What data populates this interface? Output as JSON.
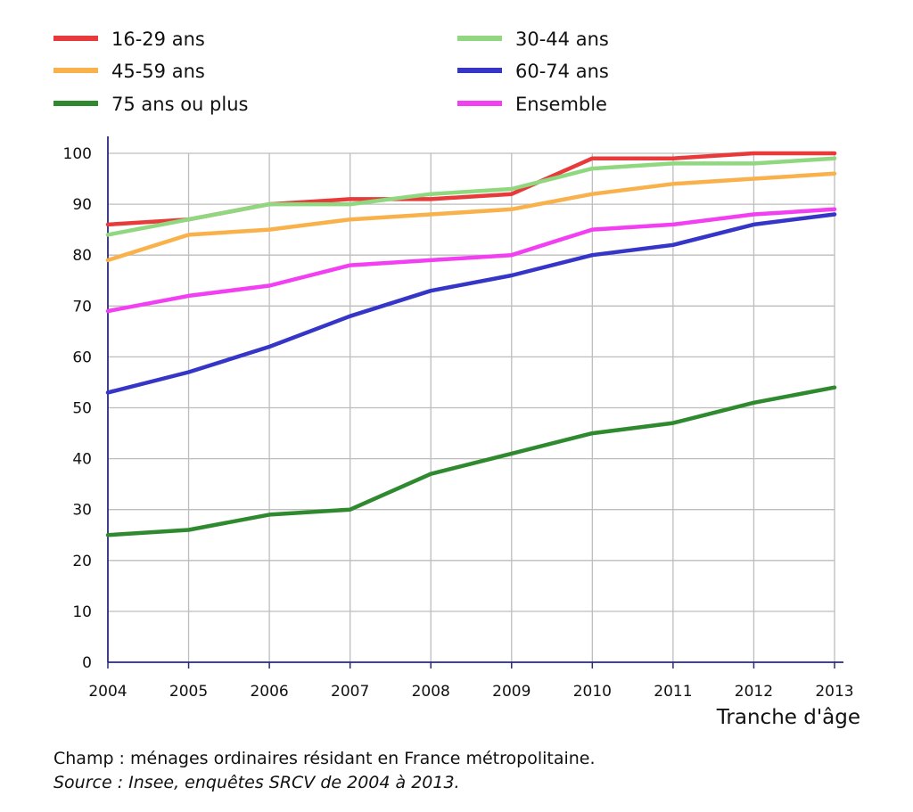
{
  "chart_data": {
    "type": "line",
    "xlabel": "Tranche d'âge",
    "ylabel": "",
    "ylim": [
      0,
      100
    ],
    "yticks": [
      0,
      10,
      20,
      30,
      40,
      50,
      60,
      70,
      80,
      90,
      100
    ],
    "categories": [
      "2004",
      "2005",
      "2006",
      "2007",
      "2008",
      "2009",
      "2010",
      "2011",
      "2012",
      "2013"
    ],
    "grid": true,
    "legend_placement": "top",
    "series": [
      {
        "name": "16-29 ans",
        "color": "#e83a3a",
        "values": [
          86,
          87,
          90,
          91,
          91,
          92,
          99,
          99,
          100,
          100
        ]
      },
      {
        "name": "30-44 ans",
        "color": "#90d880",
        "values": [
          84,
          87,
          90,
          90,
          92,
          93,
          97,
          98,
          98,
          99
        ]
      },
      {
        "name": "45-59 ans",
        "color": "#f8b14b",
        "values": [
          79,
          84,
          85,
          87,
          88,
          89,
          92,
          94,
          95,
          96
        ]
      },
      {
        "name": "60-74 ans",
        "color": "#3535c8",
        "values": [
          53,
          57,
          62,
          68,
          73,
          76,
          80,
          82,
          86,
          88
        ]
      },
      {
        "name": "75 ans ou plus",
        "color": "#2f8a2f",
        "values": [
          25,
          26,
          29,
          30,
          37,
          41,
          45,
          47,
          51,
          54
        ]
      },
      {
        "name": "Ensemble",
        "color": "#f23ff2",
        "values": [
          69,
          72,
          74,
          78,
          79,
          80,
          85,
          86,
          88,
          89
        ]
      }
    ]
  },
  "notes": {
    "champ": "Champ : ménages ordinaires résidant en France métropolitaine.",
    "source": "Source : Insee, enquêtes SRCV de 2004 à 2013."
  }
}
